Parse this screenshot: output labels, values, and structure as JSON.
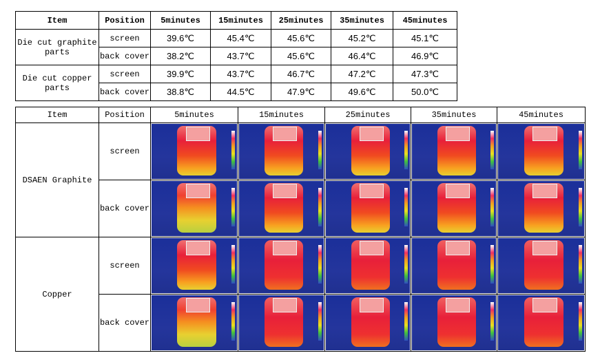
{
  "top_table": {
    "header": [
      "Item",
      "Position",
      "5minutes",
      "15minutes",
      "25minutes",
      "35minutes",
      "45minutes"
    ],
    "groups": [
      {
        "item": "Die cut graphite parts",
        "rows": [
          {
            "position": "screen",
            "values": [
              "39.6℃",
              "45.4℃",
              "45.6℃",
              "45.2℃",
              "45.1℃"
            ]
          },
          {
            "position": "back cover",
            "values": [
              "38.2℃",
              "43.7℃",
              "45.6℃",
              "46.4℃",
              "46.9℃"
            ]
          }
        ]
      },
      {
        "item": "Die cut copper parts",
        "rows": [
          {
            "position": "screen",
            "values": [
              "39.9℃",
              "43.7℃",
              "46.7℃",
              "47.2℃",
              "47.3℃"
            ]
          },
          {
            "position": "back cover",
            "values": [
              "38.8℃",
              "44.5℃",
              "47.9℃",
              "49.6℃",
              "50.0℃"
            ]
          }
        ]
      }
    ]
  },
  "bottom_table": {
    "header": [
      "Item",
      "Position",
      "5minutes",
      "15minutes",
      "25minutes",
      "35minutes",
      "45minutes"
    ],
    "groups": [
      {
        "item": "DSAEN Graphite",
        "rows": [
          {
            "position": "screen"
          },
          {
            "position": "back cover"
          }
        ]
      },
      {
        "item": "Copper",
        "rows": [
          {
            "position": "screen"
          },
          {
            "position": "back cover"
          }
        ]
      }
    ]
  }
}
